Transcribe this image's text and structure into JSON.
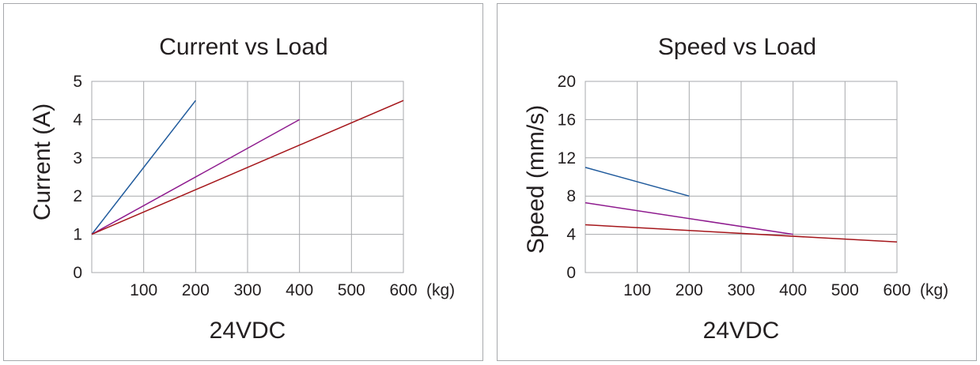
{
  "chart_data": [
    {
      "type": "line",
      "title": "Current vs Load",
      "xlabel": "(kg)",
      "ylabel": "Current (A)",
      "footer": "24VDC",
      "xlim": [
        0,
        600
      ],
      "ylim": [
        0,
        5
      ],
      "xticks": [
        "100",
        "200",
        "300",
        "400",
        "500",
        "600"
      ],
      "xtick_values": [
        100,
        200,
        300,
        400,
        500,
        600
      ],
      "yticks": [
        "0",
        "1",
        "2",
        "3",
        "4",
        "5"
      ],
      "ytick_values": [
        0,
        1,
        2,
        3,
        4,
        5
      ],
      "grid": true,
      "series": [
        {
          "name": "series-blue",
          "color": "#1f5a9c",
          "x": [
            0,
            200
          ],
          "y": [
            1.0,
            4.5
          ]
        },
        {
          "name": "series-purple",
          "color": "#8e1a8e",
          "x": [
            0,
            400
          ],
          "y": [
            1.0,
            4.0
          ]
        },
        {
          "name": "series-red",
          "color": "#a5161b",
          "x": [
            0,
            600
          ],
          "y": [
            1.0,
            4.5
          ]
        }
      ]
    },
    {
      "type": "line",
      "title": "Speed vs Load",
      "xlabel": "(kg)",
      "ylabel": "Speed (mm/s)",
      "footer": "24VDC",
      "xlim": [
        0,
        600
      ],
      "ylim": [
        0,
        20
      ],
      "xticks": [
        "100",
        "200",
        "300",
        "400",
        "500",
        "600"
      ],
      "xtick_values": [
        100,
        200,
        300,
        400,
        500,
        600
      ],
      "yticks": [
        "0",
        "4",
        "8",
        "12",
        "16",
        "20"
      ],
      "ytick_values": [
        0,
        4,
        8,
        12,
        16,
        20
      ],
      "grid": true,
      "series": [
        {
          "name": "series-blue",
          "color": "#1f5a9c",
          "x": [
            0,
            200
          ],
          "y": [
            11.0,
            8.0
          ]
        },
        {
          "name": "series-purple",
          "color": "#8e1a8e",
          "x": [
            0,
            400
          ],
          "y": [
            7.3,
            4.0
          ]
        },
        {
          "name": "series-red",
          "color": "#a5161b",
          "x": [
            0,
            600
          ],
          "y": [
            5.0,
            3.2
          ]
        }
      ]
    }
  ]
}
